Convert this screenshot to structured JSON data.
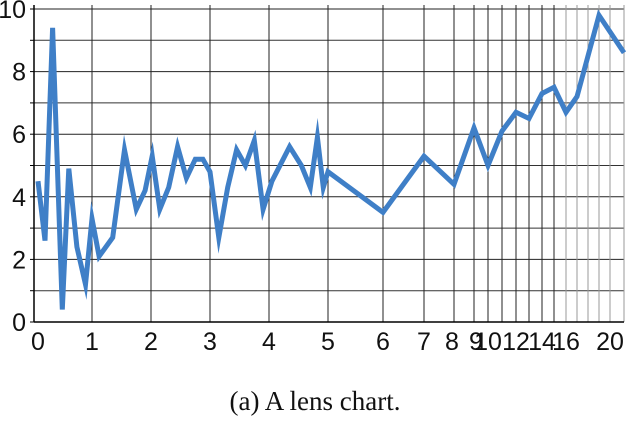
{
  "caption": "(a)  A lens chart.",
  "chart_data": {
    "type": "line",
    "title": "",
    "xlabel": "",
    "ylabel": "",
    "x_scale": "lens (linear 0–5, then increasingly compressed toward 21)",
    "xlim": [
      0,
      21
    ],
    "ylim": [
      0,
      10
    ],
    "grid": true,
    "line_color": "#3f7fc7",
    "x_tick_labels": [
      "0",
      "1",
      "2",
      "3",
      "4",
      "5",
      "6",
      "7",
      "8",
      "9",
      "10",
      "12",
      "14",
      "16",
      "20"
    ],
    "y_tick_labels": [
      "0",
      "2",
      "4",
      "6",
      "8",
      "10"
    ],
    "x": [
      0,
      0.13,
      0.27,
      0.45,
      0.57,
      0.72,
      0.88,
      1.0,
      1.12,
      1.35,
      1.55,
      1.75,
      1.9,
      2.02,
      2.15,
      2.3,
      2.45,
      2.6,
      2.75,
      2.88,
      3.0,
      3.15,
      3.3,
      3.45,
      3.6,
      3.75,
      3.9,
      4.05,
      4.35,
      4.55,
      4.7,
      4.82,
      4.92,
      5.0,
      6.0,
      7.0,
      8.0,
      9.0,
      10.0,
      11.0,
      12.0,
      13.0,
      14.0,
      15.0,
      16.0,
      17.0,
      19.0,
      21.0
    ],
    "y": [
      4.5,
      2.6,
      9.4,
      0.4,
      4.9,
      2.4,
      1.2,
      3.3,
      2.1,
      2.7,
      5.5,
      3.6,
      4.2,
      5.3,
      3.6,
      4.3,
      5.6,
      4.6,
      5.2,
      5.2,
      4.8,
      2.7,
      4.3,
      5.5,
      5.0,
      5.8,
      3.6,
      4.5,
      5.6,
      5.0,
      4.3,
      5.9,
      4.3,
      4.8,
      3.5,
      5.3,
      4.4,
      6.2,
      5.0,
      6.1,
      6.7,
      6.5,
      7.3,
      7.5,
      6.7,
      7.2,
      9.8,
      8.6
    ]
  }
}
